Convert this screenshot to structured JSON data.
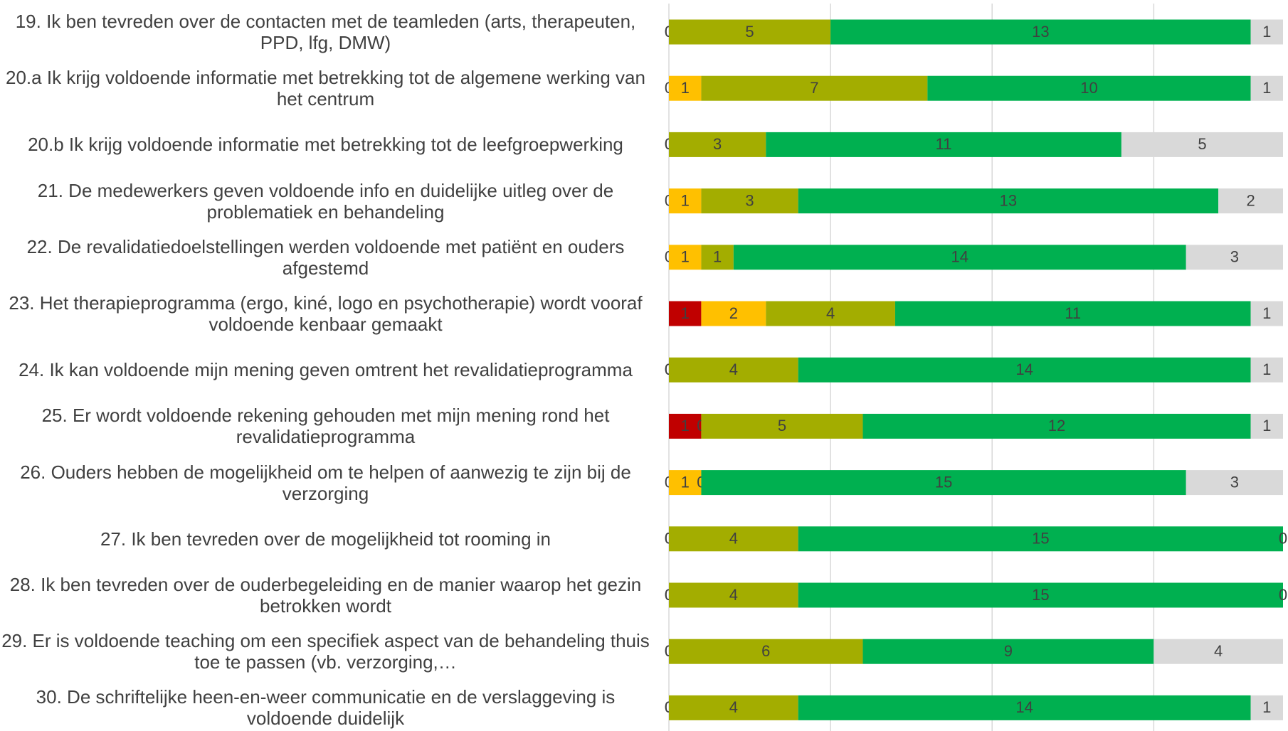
{
  "chart_data": {
    "type": "stacked-bar-horizontal",
    "categories": [
      "19. Ik ben tevreden over de contacten met de teamleden (arts, therapeuten, PPD, lfg, DMW)",
      "20.a  Ik krijg voldoende informatie met betrekking tot de algemene werking van het centrum",
      "20.b  Ik krijg voldoende informatie met betrekking tot de leefgroepwerking",
      "21. De medewerkers geven voldoende info en duidelijke uitleg over de problematiek en behandeling",
      "22. De revalidatiedoelstellingen werden voldoende met patiënt en ouders afgestemd",
      "23. Het therapieprogramma (ergo, kiné, logo en psychotherapie) wordt vooraf voldoende kenbaar gemaakt",
      "24. Ik kan voldoende mijn mening geven omtrent het revalidatieprogramma",
      "25. Er wordt voldoende rekening gehouden met mijn mening rond het revalidatieprogramma",
      "26. Ouders hebben de mogelijkheid om te helpen of aanwezig te zijn bij de verzorging",
      "27. Ik ben tevreden over de mogelijkheid tot rooming in",
      "28. Ik ben tevreden over de ouderbegeleiding en de manier waarop het gezin betrokken wordt",
      "29. Er is voldoende teaching om een specifiek aspect van de behandeling thuis toe te passen (vb. verzorging,…",
      "30. De schriftelijke  heen-en-weer communicatie en de verslaggeving is voldoende duidelijk"
    ],
    "series": [
      {
        "color": "#c00000",
        "values": [
          0,
          0,
          0,
          0,
          0,
          1,
          0,
          1,
          0,
          0,
          0,
          0,
          0
        ]
      },
      {
        "color": "#ffc000",
        "values": [
          0,
          1,
          0,
          1,
          1,
          2,
          0,
          0,
          1,
          0,
          0,
          0,
          0
        ]
      },
      {
        "color": "#a3ad00",
        "values": [
          5,
          7,
          3,
          3,
          1,
          4,
          4,
          5,
          0,
          4,
          4,
          6,
          4
        ]
      },
      {
        "color": "#00b050",
        "values": [
          13,
          10,
          11,
          13,
          14,
          11,
          14,
          12,
          15,
          15,
          15,
          9,
          14
        ]
      },
      {
        "color": "#d9d9d9",
        "values": [
          1,
          1,
          5,
          2,
          3,
          1,
          1,
          1,
          3,
          0,
          0,
          4,
          1
        ]
      }
    ],
    "xlim": [
      0,
      19
    ],
    "xticks": [
      0,
      5,
      10,
      15
    ],
    "grid": true
  }
}
